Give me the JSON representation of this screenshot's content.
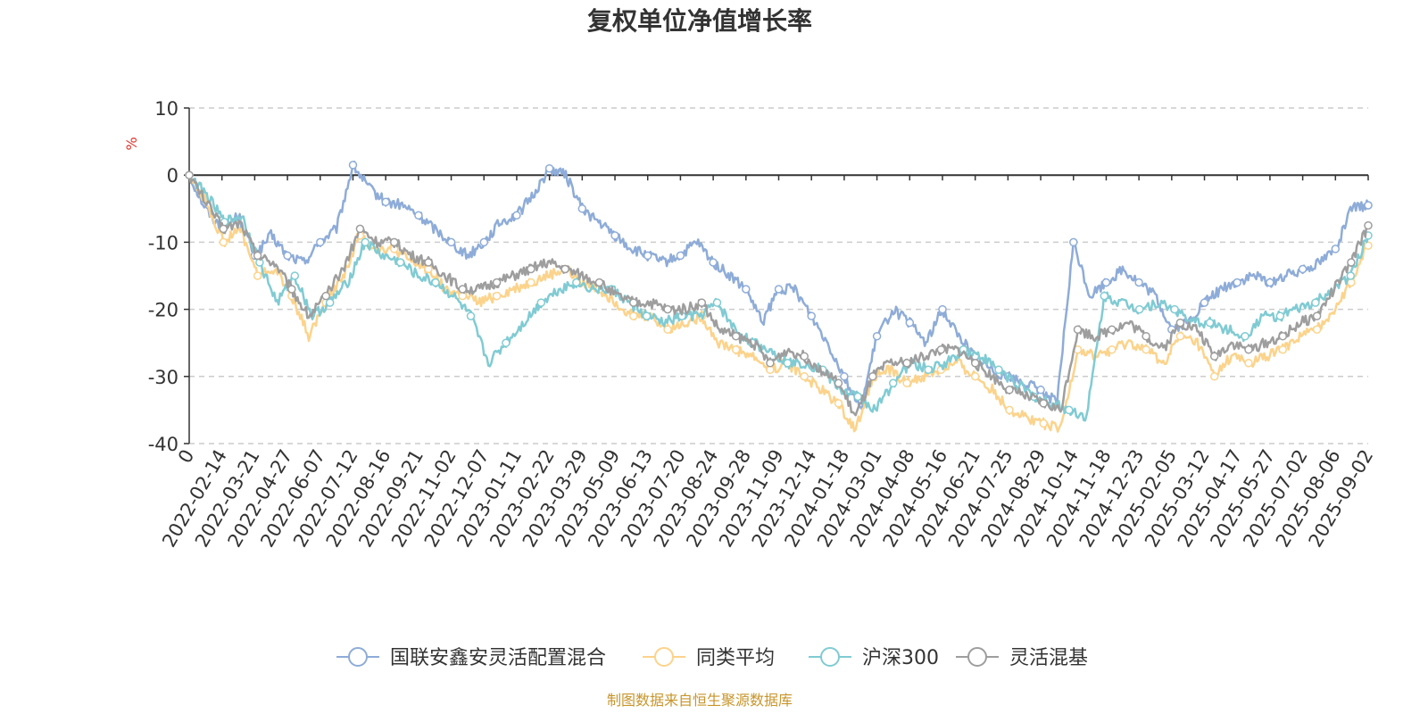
{
  "chart_data": {
    "type": "line",
    "title": "复权单位净值增长率",
    "ylabel": "%",
    "ylim": [
      -40,
      10
    ],
    "y_ticks": [
      "10",
      "0",
      "-10",
      "-20",
      "-30",
      "-40"
    ],
    "grid": true,
    "legend_position": "bottom-center",
    "source": "制图数据来自恒生聚源数据库",
    "x_ticks": [
      "0",
      "2022-02-14",
      "2022-03-21",
      "2022-04-27",
      "2022-06-07",
      "2022-07-12",
      "2022-08-16",
      "2022-09-21",
      "2022-11-02",
      "2022-12-07",
      "2023-01-11",
      "2023-02-22",
      "2023-03-29",
      "2023-05-09",
      "2023-06-13",
      "2023-07-20",
      "2023-08-24",
      "2023-09-28",
      "2023-11-09",
      "2023-12-14",
      "2024-01-18",
      "2024-03-01",
      "2024-04-08",
      "2024-05-16",
      "2024-06-21",
      "2024-07-25",
      "2024-08-29",
      "2024-10-14",
      "2024-11-18",
      "2024-12-23",
      "2025-02-05",
      "2025-03-12",
      "2025-04-17",
      "2025-05-27",
      "2025-07-02",
      "2025-08-06",
      "2025-09-02"
    ],
    "series": [
      {
        "name": "国联安鑫安灵活配置混合",
        "color": "#8eacd8",
        "values": [
          0,
          -5,
          -8,
          -6,
          -12,
          -9,
          -12,
          -13,
          -10,
          -8,
          1.5,
          -2,
          -4,
          -4.5,
          -6,
          -8,
          -10,
          -12,
          -10,
          -7,
          -6,
          -3,
          1,
          0,
          -5,
          -7,
          -9,
          -11,
          -12,
          -13,
          -12,
          -10,
          -13,
          -15,
          -17,
          -22,
          -17,
          -17,
          -21,
          -25,
          -30,
          -35,
          -24,
          -20,
          -22,
          -25,
          -20,
          -24,
          -27,
          -29,
          -30,
          -31,
          -32,
          -34,
          -10,
          -18,
          -16,
          -14,
          -16,
          -18,
          -23,
          -22,
          -19,
          -17,
          -16,
          -15,
          -16,
          -15,
          -14,
          -13,
          -11,
          -5,
          -4.5
        ]
      },
      {
        "name": "同类平均",
        "color": "#fcd38b",
        "values": [
          0,
          -4,
          -10,
          -8,
          -15,
          -14,
          -18,
          -24,
          -19,
          -15,
          -9,
          -11,
          -11,
          -13,
          -14,
          -17,
          -18,
          -19,
          -18,
          -17,
          -16,
          -15,
          -14,
          -16,
          -17,
          -19,
          -21,
          -21,
          -23,
          -22,
          -21,
          -25,
          -26,
          -27,
          -29,
          -28,
          -30,
          -32,
          -34,
          -38,
          -30,
          -29,
          -31,
          -30,
          -29,
          -28,
          -30,
          -32,
          -35,
          -36,
          -37,
          -38,
          -26,
          -27,
          -26,
          -25,
          -26,
          -28,
          -24,
          -25,
          -30,
          -27,
          -28,
          -27,
          -26,
          -24,
          -23,
          -20,
          -16,
          -10.5
        ]
      },
      {
        "name": "沪深300",
        "color": "#80cbd3",
        "values": [
          0,
          -3,
          -7,
          -6,
          -13,
          -19,
          -15,
          -21,
          -19,
          -16,
          -10,
          -12,
          -13,
          -15,
          -16,
          -18,
          -21,
          -28,
          -25,
          -22,
          -19,
          -17,
          -16,
          -17,
          -17,
          -19,
          -21,
          -22,
          -21,
          -21,
          -19,
          -23,
          -25,
          -26,
          -28,
          -28,
          -29,
          -32,
          -33,
          -35,
          -31,
          -28,
          -29,
          -28,
          -26,
          -27,
          -29,
          -31,
          -33,
          -34,
          -35,
          -36,
          -18,
          -19,
          -20,
          -19,
          -20,
          -22,
          -22,
          -23,
          -24,
          -21,
          -21,
          -20,
          -19,
          -17,
          -15,
          -9
        ]
      },
      {
        "name": "灵活混基",
        "color": "#9e9e9e",
        "values": [
          0,
          -4,
          -8,
          -7,
          -12,
          -13,
          -17,
          -21,
          -18,
          -14,
          -8,
          -10,
          -10,
          -12,
          -13,
          -15,
          -17,
          -17,
          -16,
          -15,
          -14,
          -13,
          -14,
          -15,
          -16,
          -18,
          -19,
          -19,
          -20,
          -20,
          -19,
          -23,
          -24,
          -25,
          -28,
          -26,
          -27,
          -29,
          -31,
          -36,
          -30,
          -28,
          -28,
          -27,
          -26,
          -26,
          -28,
          -30,
          -32,
          -33,
          -34,
          -35,
          -23,
          -24,
          -23,
          -22,
          -24,
          -26,
          -22,
          -23,
          -27,
          -25,
          -26,
          -25,
          -24,
          -22,
          -21,
          -17,
          -13,
          -7.5
        ]
      }
    ]
  }
}
